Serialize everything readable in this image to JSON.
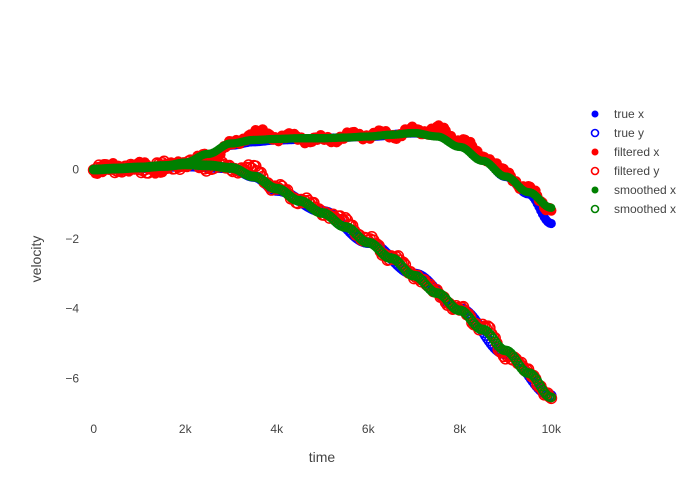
{
  "chart_data": {
    "type": "scatter",
    "title": "",
    "xlabel": "time",
    "ylabel": "velocity",
    "xlim": [
      -300,
      10300
    ],
    "ylim": [
      -7.2,
      2.0
    ],
    "x_ticks": [
      0,
      2000,
      4000,
      6000,
      8000,
      10000
    ],
    "x_tick_labels": [
      "0",
      "2k",
      "4k",
      "6k",
      "8k",
      "10k"
    ],
    "y_ticks": [
      0,
      -2,
      -4,
      -6
    ],
    "y_tick_labels": [
      "0",
      "−2",
      "−4",
      "−6"
    ],
    "grid": false,
    "legend_position": "right",
    "series": [
      {
        "name": "true x",
        "marker": "filled-circle",
        "color": "#0000ff",
        "x": [
          0,
          1000,
          2000,
          2500,
          3000,
          3500,
          4000,
          5000,
          6000,
          7000,
          7500,
          8000,
          8500,
          9000,
          9500,
          10000
        ],
        "y": [
          0.0,
          0.05,
          0.2,
          0.4,
          0.7,
          0.8,
          0.85,
          0.9,
          0.95,
          1.05,
          1.0,
          0.7,
          0.3,
          -0.2,
          -0.7,
          -1.55
        ]
      },
      {
        "name": "true y",
        "marker": "open-circle",
        "color": "#0000ff",
        "x": [
          0,
          1000,
          2000,
          3000,
          3500,
          4000,
          5000,
          6000,
          7000,
          8000,
          9000,
          10000
        ],
        "y": [
          0.0,
          0.05,
          0.1,
          0.05,
          -0.2,
          -0.6,
          -1.2,
          -2.1,
          -3.0,
          -4.0,
          -5.3,
          -6.5
        ]
      },
      {
        "name": "filtered x",
        "marker": "filled-circle",
        "color": "#ff0000",
        "x": [
          0,
          500,
          1000,
          1500,
          2000,
          2500,
          3000,
          3500,
          4000,
          4500,
          5000,
          5500,
          6000,
          6500,
          7000,
          7500,
          8000,
          8500,
          9000,
          9500,
          10000
        ],
        "y": [
          0.0,
          0.05,
          0.1,
          0.0,
          0.2,
          0.35,
          0.7,
          1.05,
          0.95,
          0.9,
          0.85,
          0.95,
          1.0,
          1.0,
          1.1,
          1.15,
          0.85,
          0.4,
          -0.1,
          -0.6,
          -1.1
        ]
      },
      {
        "name": "filtered y",
        "marker": "open-circle",
        "color": "#ff0000",
        "x": [
          0,
          500,
          1000,
          1500,
          2000,
          2500,
          3000,
          3500,
          4000,
          4500,
          5000,
          5500,
          6000,
          6500,
          7000,
          7500,
          8000,
          8500,
          9000,
          9500,
          10000
        ],
        "y": [
          0.0,
          0.05,
          0.0,
          0.1,
          0.15,
          0.1,
          0.05,
          0.0,
          -0.55,
          -0.85,
          -1.2,
          -1.5,
          -2.05,
          -2.5,
          -3.0,
          -3.55,
          -4.05,
          -4.5,
          -5.3,
          -5.8,
          -6.6
        ]
      },
      {
        "name": "smoothed x",
        "marker": "filled-circle",
        "color": "#008000",
        "x": [
          0,
          500,
          1000,
          1500,
          2000,
          2500,
          3000,
          3500,
          4000,
          4500,
          5000,
          5500,
          6000,
          6500,
          7000,
          7500,
          8000,
          8500,
          9000,
          9500,
          10000
        ],
        "y": [
          0.0,
          0.02,
          0.05,
          0.1,
          0.2,
          0.45,
          0.75,
          0.85,
          0.88,
          0.9,
          0.9,
          0.92,
          0.95,
          1.0,
          1.05,
          0.95,
          0.65,
          0.25,
          -0.2,
          -0.65,
          -1.1
        ]
      },
      {
        "name": "smoothed x",
        "marker": "open-circle",
        "color": "#008000",
        "x": [
          0,
          500,
          1000,
          1500,
          2000,
          2500,
          3000,
          3500,
          4000,
          4500,
          5000,
          5500,
          6000,
          6500,
          7000,
          7500,
          8000,
          8500,
          9000,
          9500,
          10000
        ],
        "y": [
          0.0,
          0.03,
          0.06,
          0.1,
          0.15,
          0.12,
          0.05,
          -0.2,
          -0.55,
          -0.9,
          -1.25,
          -1.65,
          -2.1,
          -2.55,
          -3.05,
          -3.55,
          -4.05,
          -4.6,
          -5.2,
          -5.85,
          -6.55
        ]
      }
    ]
  }
}
